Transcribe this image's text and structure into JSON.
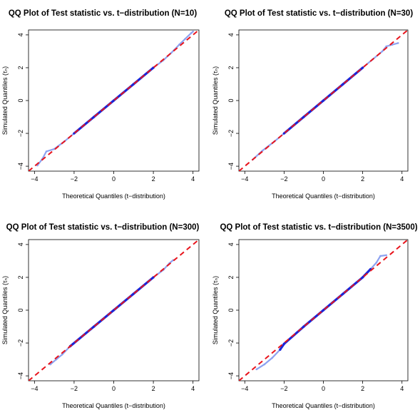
{
  "chart_data": [
    {
      "type": "scatter",
      "title": "QQ Plot of Test statistic vs. t−distribution (N=10)",
      "xlabel": "Theoretical Quantiles (t−distribution)",
      "ylabel": "Simulated Quantiles (τₙ)",
      "xlim": [
        -4.3,
        4.3
      ],
      "ylim": [
        -4.3,
        4.3
      ],
      "xticks": [
        -4,
        -2,
        0,
        2,
        4
      ],
      "yticks": [
        -4,
        -2,
        0,
        2,
        4
      ],
      "grid": false,
      "reference_line": {
        "slope": 1,
        "intercept": 0,
        "color": "#e8141c",
        "style": "dashed"
      },
      "series": [
        {
          "points": [
            [
              -3.85,
              -3.95
            ],
            [
              -3.6,
              -3.55
            ],
            [
              -3.4,
              -3.1
            ],
            [
              -3.0,
              -2.95
            ],
            [
              -2.5,
              -2.5
            ],
            [
              -2.0,
              -2.0
            ],
            [
              -1.0,
              -1.0
            ],
            [
              0.0,
              0.0
            ],
            [
              1.0,
              1.0
            ],
            [
              2.0,
              2.0
            ],
            [
              2.5,
              2.45
            ],
            [
              2.9,
              2.9
            ],
            [
              3.3,
              3.4
            ],
            [
              3.6,
              3.75
            ],
            [
              3.9,
              4.1
            ],
            [
              4.0,
              4.2
            ]
          ]
        }
      ]
    },
    {
      "type": "scatter",
      "title": "QQ Plot of Test statistic vs. t−distribution (N=30)",
      "xlabel": "Theoretical Quantiles (t−distribution)",
      "ylabel": "Simulated Quantiles (τₙ)",
      "xlim": [
        -4.3,
        4.3
      ],
      "ylim": [
        -4.3,
        4.3
      ],
      "xticks": [
        -4,
        -2,
        0,
        2,
        4
      ],
      "yticks": [
        -4,
        -2,
        0,
        2,
        4
      ],
      "grid": false,
      "reference_line": {
        "slope": 1,
        "intercept": 0,
        "color": "#e8141c",
        "style": "dashed"
      },
      "series": [
        {
          "points": [
            [
              -3.6,
              -3.6
            ],
            [
              -3.1,
              -3.05
            ],
            [
              -2.5,
              -2.5
            ],
            [
              -2.0,
              -2.0
            ],
            [
              -1.0,
              -1.0
            ],
            [
              0.0,
              0.0
            ],
            [
              1.0,
              1.0
            ],
            [
              2.0,
              2.0
            ],
            [
              2.5,
              2.5
            ],
            [
              3.0,
              3.0
            ],
            [
              3.2,
              3.3
            ],
            [
              3.5,
              3.4
            ],
            [
              3.8,
              3.5
            ]
          ]
        }
      ]
    },
    {
      "type": "scatter",
      "title": "QQ Plot of Test statistic vs. t−distribution (N=300)",
      "xlabel": "Theoretical Quantiles (t−distribution)",
      "ylabel": "Simulated Quantiles (τₙ)",
      "xlim": [
        -4.3,
        4.3
      ],
      "ylim": [
        -4.3,
        4.3
      ],
      "xticks": [
        -4,
        -2,
        0,
        2,
        4
      ],
      "yticks": [
        -4,
        -2,
        0,
        2,
        4
      ],
      "grid": false,
      "reference_line": {
        "slope": 1,
        "intercept": 0,
        "color": "#e8141c",
        "style": "dashed"
      },
      "series": [
        {
          "points": [
            [
              -3.2,
              -3.3
            ],
            [
              -2.9,
              -3.0
            ],
            [
              -2.6,
              -2.7
            ],
            [
              -2.2,
              -2.2
            ],
            [
              -1.0,
              -1.0
            ],
            [
              0.0,
              0.0
            ],
            [
              1.0,
              1.0
            ],
            [
              2.0,
              2.0
            ],
            [
              2.5,
              2.45
            ],
            [
              2.8,
              2.85
            ],
            [
              3.0,
              3.05
            ]
          ]
        }
      ]
    },
    {
      "type": "scatter",
      "title": "QQ Plot of Test statistic vs. t−distribution (N=3500)",
      "xlabel": "Theoretical Quantiles (t−distribution)",
      "ylabel": "Simulated Quantiles (τₙ)",
      "xlim": [
        -4.3,
        4.3
      ],
      "ylim": [
        -4.3,
        4.3
      ],
      "xticks": [
        -4,
        -2,
        0,
        2,
        4
      ],
      "yticks": [
        -4,
        -2,
        0,
        2,
        4
      ],
      "grid": false,
      "reference_line": {
        "slope": 1,
        "intercept": 0,
        "color": "#e8141c",
        "style": "dashed"
      },
      "series": [
        {
          "points": [
            [
              -3.4,
              -3.6
            ],
            [
              -3.0,
              -3.3
            ],
            [
              -2.6,
              -2.9
            ],
            [
              -2.2,
              -2.4
            ],
            [
              -2.0,
              -2.05
            ],
            [
              -1.0,
              -1.0
            ],
            [
              0.0,
              0.0
            ],
            [
              1.0,
              1.0
            ],
            [
              2.0,
              2.0
            ],
            [
              2.4,
              2.5
            ],
            [
              2.7,
              2.9
            ],
            [
              2.9,
              3.3
            ],
            [
              3.2,
              3.35
            ]
          ]
        }
      ]
    }
  ],
  "colors": {
    "points_dense": "#1a26d9",
    "points_sparse": "#8da2f0",
    "reference_line": "#e8141c"
  }
}
